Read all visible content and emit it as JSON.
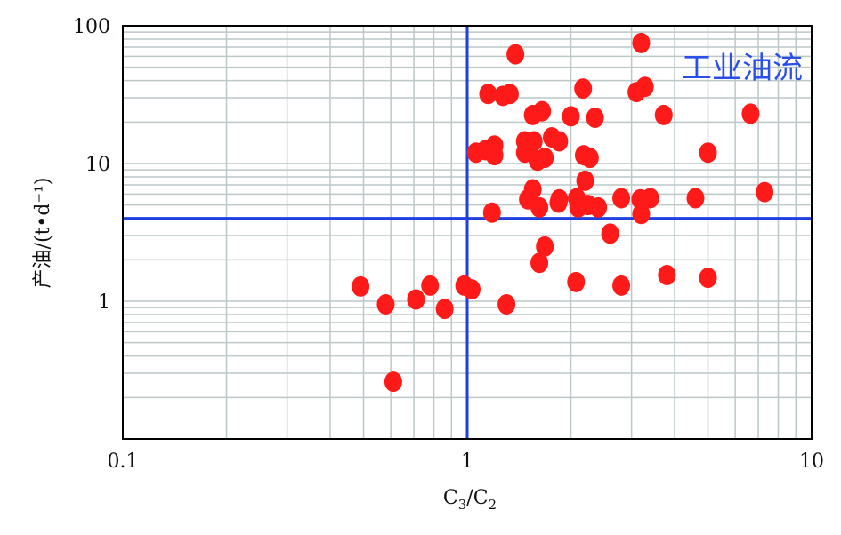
{
  "chart_data": {
    "type": "scatter",
    "xscale": "log",
    "yscale": "log",
    "xlim": [
      0.1,
      10
    ],
    "ylim": [
      0.1,
      100
    ],
    "xticks": [
      {
        "v": 0.1,
        "label": "0.1"
      },
      {
        "v": 1,
        "label": "1"
      },
      {
        "v": 10,
        "label": "10"
      }
    ],
    "yticks": [
      {
        "v": 1,
        "label": "1"
      },
      {
        "v": 10,
        "label": "10"
      },
      {
        "v": 100,
        "label": "100"
      }
    ],
    "xlabel": {
      "base": "C",
      "sub1": "3",
      "slash": "/C",
      "sub2": "2"
    },
    "ylabel": "产油/(t•d⁻¹)",
    "grid": true,
    "reference_lines": {
      "x": 1,
      "y": 4
    },
    "annotation": "工业油流",
    "annotation_position": "top-right",
    "colors": {
      "points": "#ff1a1a",
      "reference": "#1f3fe0",
      "grid": "#bcc7c7",
      "annotation": "#2a4fe8"
    },
    "points": [
      [
        1.38,
        62
      ],
      [
        3.2,
        75
      ],
      [
        1.15,
        32
      ],
      [
        1.27,
        31
      ],
      [
        1.33,
        32
      ],
      [
        2.17,
        35
      ],
      [
        3.1,
        33
      ],
      [
        3.28,
        36
      ],
      [
        1.55,
        22.5
      ],
      [
        1.65,
        24
      ],
      [
        2.0,
        22
      ],
      [
        2.35,
        21.5
      ],
      [
        3.72,
        22.5
      ],
      [
        6.65,
        23
      ],
      [
        1.47,
        14.5
      ],
      [
        1.56,
        14.5
      ],
      [
        1.06,
        12
      ],
      [
        1.13,
        12.5
      ],
      [
        1.2,
        13.5
      ],
      [
        1.2,
        11.5
      ],
      [
        1.47,
        12
      ],
      [
        1.76,
        15.5
      ],
      [
        1.85,
        14.5
      ],
      [
        1.6,
        10.5
      ],
      [
        1.68,
        11
      ],
      [
        2.18,
        11.5
      ],
      [
        2.27,
        11
      ],
      [
        5.0,
        12
      ],
      [
        1.55,
        6.5
      ],
      [
        1.5,
        5.5
      ],
      [
        1.62,
        4.8
      ],
      [
        1.84,
        5.2
      ],
      [
        1.85,
        5.5
      ],
      [
        2.08,
        5.6
      ],
      [
        2.1,
        4.8
      ],
      [
        2.2,
        7.5
      ],
      [
        2.24,
        5
      ],
      [
        2.4,
        4.8
      ],
      [
        2.8,
        5.6
      ],
      [
        3.18,
        5.5
      ],
      [
        3.4,
        5.6
      ],
      [
        3.2,
        4.3
      ],
      [
        4.6,
        5.6
      ],
      [
        7.3,
        6.2
      ],
      [
        1.18,
        4.4
      ],
      [
        2.6,
        3.1
      ],
      [
        1.68,
        2.5
      ],
      [
        1.62,
        1.9
      ],
      [
        2.07,
        1.38
      ],
      [
        2.8,
        1.3
      ],
      [
        3.8,
        1.55
      ],
      [
        5.0,
        1.48
      ],
      [
        0.49,
        1.28
      ],
      [
        0.78,
        1.3
      ],
      [
        0.98,
        1.3
      ],
      [
        1.03,
        1.22
      ],
      [
        0.58,
        0.95
      ],
      [
        0.71,
        1.03
      ],
      [
        0.86,
        0.88
      ],
      [
        1.3,
        0.95
      ],
      [
        0.61,
        0.26
      ]
    ]
  }
}
